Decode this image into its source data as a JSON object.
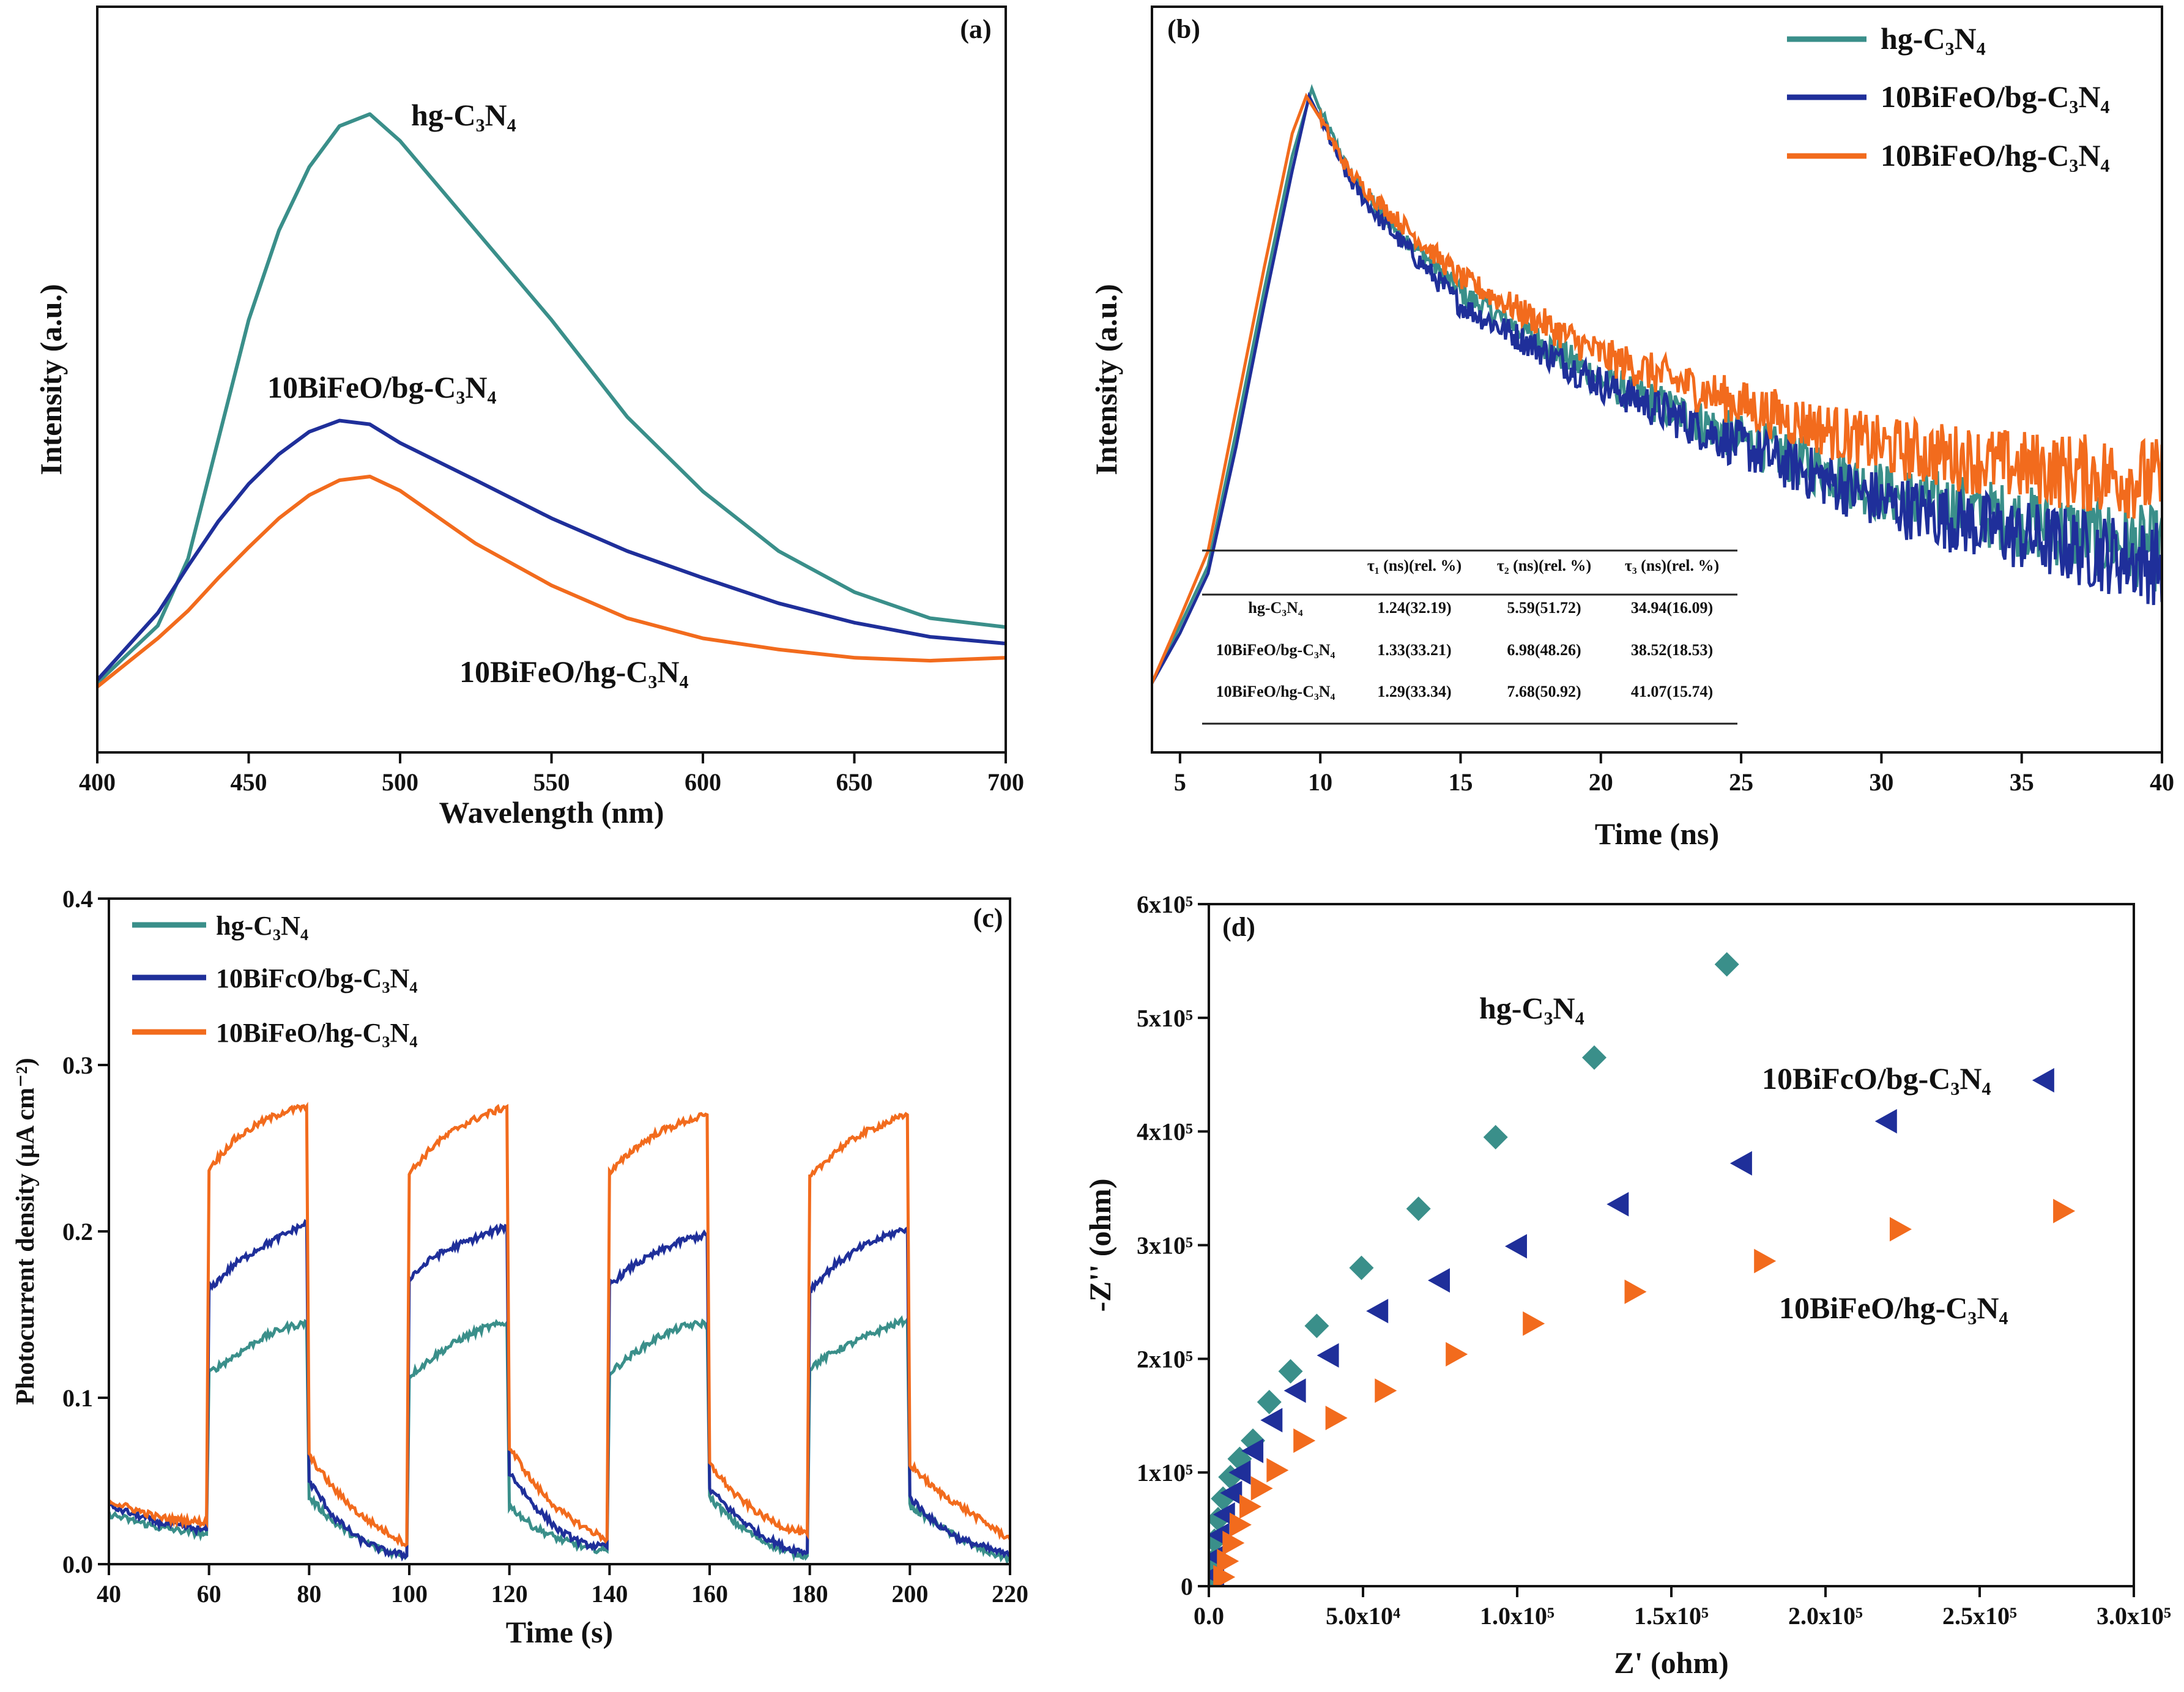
{
  "colors": {
    "hg": "#3a8f8a",
    "bg": "#1f2f9a",
    "hg_composite": "#f26b1d"
  },
  "chart_data": [
    {
      "panel": "(a)",
      "type": "line",
      "xlabel": "Wavelength (nm)",
      "ylabel": "Intensity (a.u.)",
      "xlim": [
        400,
        700
      ],
      "ylim": [
        0,
        1
      ],
      "xticks": [
        "400",
        "450",
        "500",
        "550",
        "600",
        "650",
        "700"
      ],
      "x": [
        400,
        420,
        430,
        440,
        450,
        460,
        470,
        480,
        490,
        500,
        525,
        550,
        575,
        600,
        625,
        650,
        675,
        700
      ],
      "series": [
        {
          "name": "hg-C₃N₄",
          "color_key": "hg",
          "values": [
            0.093,
            0.17,
            0.26,
            0.42,
            0.58,
            0.7,
            0.785,
            0.84,
            0.856,
            0.82,
            0.7,
            0.58,
            0.45,
            0.35,
            0.27,
            0.215,
            0.18,
            0.168
          ]
        },
        {
          "name": "10BiFeO/bg-C₃N₄",
          "color_key": "bg",
          "values": [
            0.097,
            0.187,
            0.25,
            0.31,
            0.36,
            0.4,
            0.43,
            0.445,
            0.44,
            0.415,
            0.365,
            0.314,
            0.27,
            0.234,
            0.2,
            0.174,
            0.155,
            0.146
          ]
        },
        {
          "name": "10BiFeO/hg-C₃N₄",
          "color_key": "hg_composite",
          "values": [
            0.088,
            0.153,
            0.19,
            0.234,
            0.275,
            0.314,
            0.345,
            0.365,
            0.37,
            0.351,
            0.28,
            0.224,
            0.18,
            0.153,
            0.138,
            0.127,
            0.123,
            0.127
          ]
        }
      ]
    },
    {
      "panel": "(b)",
      "type": "line",
      "xlabel": "Time (ns)",
      "ylabel": "Intensity (a.u.)",
      "xlim": [
        4,
        40
      ],
      "ylim": [
        0,
        1
      ],
      "xticks": [
        "5",
        "10",
        "15",
        "20",
        "25",
        "30",
        "35",
        "40"
      ],
      "legend": "top-right",
      "series": [
        {
          "name": "hg-C₃N₄",
          "color_key": "hg",
          "x": [
            4,
            5,
            6,
            7,
            8,
            9,
            9.7,
            10,
            11,
            12,
            15,
            20,
            25,
            30,
            35,
            40
          ],
          "values": [
            0.093,
            0.17,
            0.25,
            0.43,
            0.62,
            0.8,
            0.89,
            0.86,
            0.78,
            0.73,
            0.617,
            0.5,
            0.42,
            0.35,
            0.31,
            0.27
          ]
        },
        {
          "name": "10BiFeO/bg-C₃N₄",
          "color_key": "bg",
          "x": [
            4,
            5,
            6,
            7,
            8,
            9,
            9.6,
            10,
            11,
            12,
            15,
            20,
            25,
            30,
            35,
            40
          ],
          "values": [
            0.093,
            0.16,
            0.24,
            0.41,
            0.6,
            0.78,
            0.88,
            0.85,
            0.77,
            0.72,
            0.6,
            0.495,
            0.411,
            0.336,
            0.29,
            0.252
          ]
        },
        {
          "name": "10BiFeO/hg-C₃N₄",
          "color_key": "hg_composite",
          "x": [
            4,
            5,
            6,
            7,
            8,
            9,
            9.5,
            10,
            11,
            12,
            15,
            20,
            25,
            30,
            35,
            40
          ],
          "values": [
            0.093,
            0.18,
            0.27,
            0.46,
            0.65,
            0.83,
            0.88,
            0.85,
            0.78,
            0.74,
            0.636,
            0.533,
            0.467,
            0.41,
            0.383,
            0.364
          ]
        }
      ],
      "table": {
        "headers": [
          "",
          "τ₁ (ns)(rel. %)",
          "τ₂ (ns)(rel. %)",
          "τ₃ (ns)(rel. %)"
        ],
        "rows": [
          [
            "hg-C₃N₄",
            "1.24(32.19)",
            "5.59(51.72)",
            "34.94(16.09)"
          ],
          [
            "10BiFeO/bg-C₃N₄",
            "1.33(33.21)",
            "6.98(48.26)",
            "38.52(18.53)"
          ],
          [
            "10BiFeO/hg-C₃N₄",
            "1.29(33.34)",
            "7.68(50.92)",
            "41.07(15.74)"
          ]
        ]
      }
    },
    {
      "panel": "(c)",
      "type": "line",
      "xlabel": "Time (s)",
      "ylabel": "Photocurrent density (μA cm⁻²)",
      "xlim": [
        40,
        220
      ],
      "ylim": [
        0,
        0.4
      ],
      "xticks": [
        "40",
        "60",
        "80",
        "100",
        "120",
        "140",
        "160",
        "180",
        "200",
        "220"
      ],
      "yticks": [
        "0.0",
        "0.1",
        "0.2",
        "0.3",
        "0.4"
      ],
      "legend": "top-left",
      "series": [
        {
          "name": "hg-C₃N₄",
          "color_key": "hg",
          "points": [
            [
              40,
              0.03
            ],
            [
              50,
              0.022
            ],
            [
              59.5,
              0.018
            ],
            [
              60,
              0.115
            ],
            [
              65,
              0.125
            ],
            [
              70,
              0.135
            ],
            [
              75,
              0.142
            ],
            [
              79.5,
              0.145
            ],
            [
              80,
              0.04
            ],
            [
              85,
              0.025
            ],
            [
              90,
              0.015
            ],
            [
              95,
              0.008
            ],
            [
              99.5,
              0.005
            ],
            [
              100,
              0.113
            ],
            [
              105,
              0.125
            ],
            [
              110,
              0.135
            ],
            [
              115,
              0.142
            ],
            [
              119.5,
              0.145
            ],
            [
              120,
              0.035
            ],
            [
              125,
              0.022
            ],
            [
              130,
              0.015
            ],
            [
              135,
              0.01
            ],
            [
              139.5,
              0.008
            ],
            [
              140,
              0.115
            ],
            [
              145,
              0.127
            ],
            [
              150,
              0.137
            ],
            [
              155,
              0.143
            ],
            [
              159.5,
              0.145
            ],
            [
              160,
              0.04
            ],
            [
              165,
              0.025
            ],
            [
              170,
              0.015
            ],
            [
              175,
              0.008
            ],
            [
              179.5,
              0.005
            ],
            [
              180,
              0.118
            ],
            [
              185,
              0.128
            ],
            [
              190,
              0.135
            ],
            [
              195,
              0.142
            ],
            [
              199.5,
              0.147
            ],
            [
              200,
              0.035
            ],
            [
              205,
              0.025
            ],
            [
              210,
              0.015
            ],
            [
              215,
              0.008
            ],
            [
              220,
              0.003
            ]
          ]
        },
        {
          "name": "10BiFcO/bg-C₃N₄",
          "color_key": "bg",
          "points": [
            [
              40,
              0.035
            ],
            [
              50,
              0.025
            ],
            [
              59.5,
              0.02
            ],
            [
              60,
              0.165
            ],
            [
              65,
              0.18
            ],
            [
              70,
              0.19
            ],
            [
              75,
              0.198
            ],
            [
              79.5,
              0.205
            ],
            [
              80,
              0.05
            ],
            [
              85,
              0.028
            ],
            [
              90,
              0.015
            ],
            [
              95,
              0.008
            ],
            [
              99.5,
              0.005
            ],
            [
              100,
              0.172
            ],
            [
              105,
              0.185
            ],
            [
              110,
              0.192
            ],
            [
              115,
              0.198
            ],
            [
              119.5,
              0.203
            ],
            [
              120,
              0.055
            ],
            [
              125,
              0.035
            ],
            [
              130,
              0.02
            ],
            [
              135,
              0.012
            ],
            [
              139.5,
              0.01
            ],
            [
              140,
              0.168
            ],
            [
              145,
              0.18
            ],
            [
              150,
              0.188
            ],
            [
              155,
              0.195
            ],
            [
              159.5,
              0.198
            ],
            [
              160,
              0.045
            ],
            [
              165,
              0.03
            ],
            [
              170,
              0.018
            ],
            [
              175,
              0.01
            ],
            [
              179.5,
              0.007
            ],
            [
              180,
              0.165
            ],
            [
              185,
              0.18
            ],
            [
              190,
              0.19
            ],
            [
              195,
              0.197
            ],
            [
              199.5,
              0.202
            ],
            [
              200,
              0.04
            ],
            [
              205,
              0.025
            ],
            [
              210,
              0.015
            ],
            [
              215,
              0.01
            ],
            [
              220,
              0.005
            ]
          ]
        },
        {
          "name": "10BiFeO/hg-C₃N₄",
          "color_key": "hg_composite",
          "points": [
            [
              40,
              0.038
            ],
            [
              50,
              0.028
            ],
            [
              59.5,
              0.025
            ],
            [
              60,
              0.238
            ],
            [
              65,
              0.255
            ],
            [
              70,
              0.265
            ],
            [
              75,
              0.272
            ],
            [
              79.5,
              0.275
            ],
            [
              80,
              0.065
            ],
            [
              85,
              0.045
            ],
            [
              90,
              0.03
            ],
            [
              95,
              0.02
            ],
            [
              99.5,
              0.012
            ],
            [
              100,
              0.235
            ],
            [
              105,
              0.252
            ],
            [
              110,
              0.263
            ],
            [
              115,
              0.27
            ],
            [
              119.5,
              0.275
            ],
            [
              120,
              0.07
            ],
            [
              125,
              0.048
            ],
            [
              130,
              0.032
            ],
            [
              135,
              0.022
            ],
            [
              139.5,
              0.015
            ],
            [
              140,
              0.235
            ],
            [
              145,
              0.25
            ],
            [
              150,
              0.26
            ],
            [
              155,
              0.266
            ],
            [
              159.5,
              0.27
            ],
            [
              160,
              0.06
            ],
            [
              165,
              0.042
            ],
            [
              170,
              0.03
            ],
            [
              175,
              0.022
            ],
            [
              179.5,
              0.018
            ],
            [
              180,
              0.232
            ],
            [
              185,
              0.248
            ],
            [
              190,
              0.258
            ],
            [
              195,
              0.265
            ],
            [
              199.5,
              0.27
            ],
            [
              200,
              0.06
            ],
            [
              205,
              0.045
            ],
            [
              210,
              0.035
            ],
            [
              215,
              0.025
            ],
            [
              220,
              0.015
            ]
          ]
        }
      ]
    },
    {
      "panel": "(d)",
      "type": "scatter",
      "xlabel": "Z' (ohm)",
      "ylabel": "-Z'' (ohm)",
      "xlim": [
        0,
        300000
      ],
      "ylim": [
        0,
        600000
      ],
      "xticks": [
        "0.0",
        "5.0x10⁴",
        "1.0x10⁵",
        "1.5x10⁵",
        "2.0x10⁵",
        "2.5x10⁵",
        "3.0x10⁵"
      ],
      "yticks": [
        "0",
        "1x10⁵",
        "2x10⁵",
        "3x10⁵",
        "4x10⁵",
        "5x10⁵",
        "6x10⁵"
      ],
      "series": [
        {
          "name": "hg-C₃N₄",
          "color_key": "hg",
          "marker": "diamond",
          "x": [
            168000,
            125000,
            93000,
            68000,
            49500,
            35000,
            26500,
            19600,
            14300,
            10000,
            7000,
            4600,
            3000,
            1800,
            1200,
            1000
          ],
          "y": [
            547000,
            465000,
            395000,
            332000,
            280000,
            229000,
            189000,
            162000,
            128000,
            112000,
            96000,
            77000,
            59000,
            40000,
            22000,
            8000
          ]
        },
        {
          "name": "10BiFcO/bg-C₃N₄",
          "color_key": "bg",
          "marker": "triangle-left",
          "x": [
            271000,
            220000,
            173000,
            133000,
            100000,
            75000,
            55000,
            39000,
            28300,
            20700,
            14500,
            10400,
            7600,
            5300,
            3500,
            2300,
            1800
          ],
          "y": [
            445000,
            409000,
            372000,
            336000,
            299000,
            269000,
            242000,
            203000,
            172000,
            146000,
            119000,
            100000,
            82000,
            63000,
            45000,
            26000,
            10000
          ]
        },
        {
          "name": "10BiFeO/hg-C₃N₄",
          "color_key": "hg_composite",
          "marker": "triangle-right",
          "x": [
            277000,
            224000,
            180000,
            138000,
            105000,
            80000,
            57000,
            41000,
            30600,
            21900,
            16800,
            13100,
            9900,
            7600,
            5800,
            4600
          ],
          "y": [
            330000,
            314000,
            286000,
            259000,
            231000,
            204000,
            172000,
            148000,
            128000,
            102000,
            86000,
            70000,
            54000,
            38000,
            22000,
            8000
          ]
        }
      ]
    }
  ]
}
